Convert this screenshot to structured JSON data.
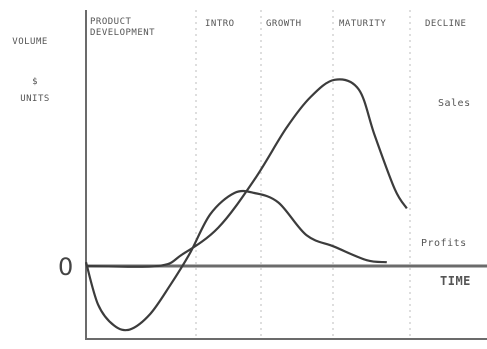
{
  "chart_data": {
    "type": "line",
    "title": "",
    "ylabel": "VOLUME\n$\nUNITS",
    "xlabel": "TIME",
    "zero_label": "0",
    "stages": [
      {
        "label": "PRODUCT\nDEVELOPMENT"
      },
      {
        "label": "INTRO"
      },
      {
        "label": "GROWTH"
      },
      {
        "label": "MATURITY"
      },
      {
        "label": "DECLINE"
      }
    ],
    "series": [
      {
        "name": "Sales",
        "points": [
          [
            0,
            0
          ],
          [
            0.18,
            0
          ],
          [
            0.24,
            0.06
          ],
          [
            0.33,
            0.2
          ],
          [
            0.42,
            0.45
          ],
          [
            0.5,
            0.72
          ],
          [
            0.56,
            0.88
          ],
          [
            0.62,
            0.97
          ],
          [
            0.68,
            0.92
          ],
          [
            0.72,
            0.68
          ],
          [
            0.77,
            0.4
          ],
          [
            0.8,
            0.3
          ]
        ]
      },
      {
        "name": "Profits",
        "points": [
          [
            0,
            0.02
          ],
          [
            0.03,
            -0.2
          ],
          [
            0.07,
            -0.31
          ],
          [
            0.11,
            -0.33
          ],
          [
            0.16,
            -0.25
          ],
          [
            0.21,
            -0.1
          ],
          [
            0.26,
            0.07
          ],
          [
            0.31,
            0.27
          ],
          [
            0.37,
            0.38
          ],
          [
            0.42,
            0.38
          ],
          [
            0.48,
            0.33
          ],
          [
            0.55,
            0.16
          ],
          [
            0.62,
            0.1
          ],
          [
            0.7,
            0.03
          ],
          [
            0.75,
            0.02
          ]
        ]
      }
    ],
    "colors": {
      "axes": "#6b6b6b",
      "curve": "#3c3c3c",
      "text": "#555555",
      "divider": "#bdbdbd"
    }
  }
}
